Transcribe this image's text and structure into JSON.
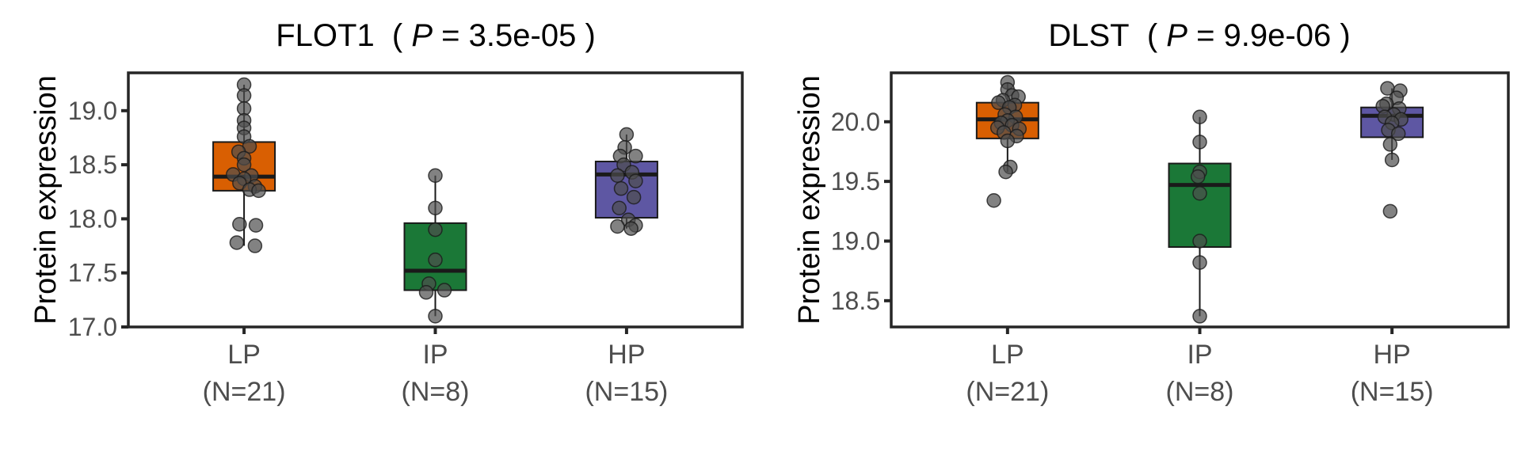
{
  "chart_data": [
    {
      "type": "box",
      "title": "FLOT1",
      "p_label": "P",
      "p_value": "3.5e-05",
      "ylabel": "Protein expression",
      "ylim": [
        17.0,
        19.35
      ],
      "yticks": [
        "17.0",
        "17.5",
        "18.0",
        "18.5",
        "19.0"
      ],
      "categories": [
        {
          "label": "LP",
          "n_label": "(N=21)",
          "color": "#D95F02"
        },
        {
          "label": "IP",
          "n_label": "(N=8)",
          "color": "#1B7837"
        },
        {
          "label": "HP",
          "n_label": "(N=15)",
          "color": "#5E57A3"
        }
      ],
      "boxes": [
        {
          "q1": 18.26,
          "median": 18.39,
          "q3": 18.71,
          "whisker_low": 17.75,
          "whisker_high": 19.24
        },
        {
          "q1": 17.34,
          "median": 17.52,
          "q3": 17.96,
          "whisker_low": 17.1,
          "whisker_high": 18.4
        },
        {
          "q1": 18.01,
          "median": 18.41,
          "q3": 18.53,
          "whisker_low": 17.91,
          "whisker_high": 18.78
        }
      ],
      "points": [
        [
          {
            "x": 0.0,
            "y": 19.24
          },
          {
            "x": 0.0,
            "y": 19.14
          },
          {
            "x": 0.0,
            "y": 19.02
          },
          {
            "x": 0.0,
            "y": 18.91
          },
          {
            "x": 0.0,
            "y": 18.84
          },
          {
            "x": 0.0,
            "y": 18.76
          },
          {
            "x": 0.06,
            "y": 18.67
          },
          {
            "x": -0.06,
            "y": 18.62
          },
          {
            "x": 0.0,
            "y": 18.56
          },
          {
            "x": 0.0,
            "y": 18.5
          },
          {
            "x": -0.12,
            "y": 18.41
          },
          {
            "x": 0.08,
            "y": 18.4
          },
          {
            "x": 0.0,
            "y": 18.37
          },
          {
            "x": -0.05,
            "y": 18.33
          },
          {
            "x": 0.12,
            "y": 18.3
          },
          {
            "x": 0.06,
            "y": 18.27
          },
          {
            "x": 0.16,
            "y": 18.26
          },
          {
            "x": -0.05,
            "y": 17.95
          },
          {
            "x": 0.13,
            "y": 17.94
          },
          {
            "x": -0.08,
            "y": 17.78
          },
          {
            "x": 0.12,
            "y": 17.75
          }
        ],
        [
          {
            "x": 0.0,
            "y": 18.4
          },
          {
            "x": 0.0,
            "y": 18.1
          },
          {
            "x": 0.0,
            "y": 17.9
          },
          {
            "x": 0.0,
            "y": 17.62
          },
          {
            "x": -0.07,
            "y": 17.4
          },
          {
            "x": 0.1,
            "y": 17.34
          },
          {
            "x": -0.1,
            "y": 17.32
          },
          {
            "x": 0.0,
            "y": 17.1
          }
        ],
        [
          {
            "x": 0.0,
            "y": 18.78
          },
          {
            "x": -0.02,
            "y": 18.66
          },
          {
            "x": -0.07,
            "y": 18.58
          },
          {
            "x": 0.1,
            "y": 18.58
          },
          {
            "x": -0.03,
            "y": 18.5
          },
          {
            "x": 0.06,
            "y": 18.43
          },
          {
            "x": -0.1,
            "y": 18.4
          },
          {
            "x": 0.1,
            "y": 18.35
          },
          {
            "x": -0.06,
            "y": 18.28
          },
          {
            "x": 0.08,
            "y": 18.2
          },
          {
            "x": -0.08,
            "y": 18.1
          },
          {
            "x": 0.02,
            "y": 17.99
          },
          {
            "x": -0.1,
            "y": 17.93
          },
          {
            "x": 0.1,
            "y": 17.94
          },
          {
            "x": 0.05,
            "y": 17.91
          }
        ]
      ]
    },
    {
      "type": "box",
      "title": "DLST",
      "p_label": "P",
      "p_value": "9.9e-06",
      "ylabel": "Protein expression",
      "ylim": [
        18.28,
        20.41
      ],
      "yticks": [
        "18.5",
        "19.0",
        "19.5",
        "20.0"
      ],
      "categories": [
        {
          "label": "LP",
          "n_label": "(N=21)",
          "color": "#D95F02"
        },
        {
          "label": "IP",
          "n_label": "(N=8)",
          "color": "#1B7837"
        },
        {
          "label": "HP",
          "n_label": "(N=15)",
          "color": "#5E57A3"
        }
      ],
      "boxes": [
        {
          "q1": 19.86,
          "median": 20.02,
          "q3": 20.16,
          "whisker_low": 19.58,
          "whisker_high": 20.33
        },
        {
          "q1": 18.95,
          "median": 19.47,
          "q3": 19.65,
          "whisker_low": 18.37,
          "whisker_high": 20.04
        },
        {
          "q1": 19.87,
          "median": 20.05,
          "q3": 20.12,
          "whisker_low": 19.68,
          "whisker_high": 20.28
        }
      ],
      "points": [
        [
          {
            "x": 0.0,
            "y": 20.33
          },
          {
            "x": 0.0,
            "y": 20.27
          },
          {
            "x": 0.05,
            "y": 20.22
          },
          {
            "x": 0.12,
            "y": 20.21
          },
          {
            "x": -0.05,
            "y": 20.18
          },
          {
            "x": -0.1,
            "y": 20.16
          },
          {
            "x": 0.08,
            "y": 20.14
          },
          {
            "x": 0.02,
            "y": 20.12
          },
          {
            "x": -0.03,
            "y": 20.06
          },
          {
            "x": 0.09,
            "y": 20.04
          },
          {
            "x": 0.0,
            "y": 20.01
          },
          {
            "x": -0.07,
            "y": 19.99
          },
          {
            "x": 0.05,
            "y": 19.97
          },
          {
            "x": -0.11,
            "y": 19.95
          },
          {
            "x": 0.13,
            "y": 19.94
          },
          {
            "x": -0.04,
            "y": 19.91
          },
          {
            "x": 0.1,
            "y": 19.88
          },
          {
            "x": 0.0,
            "y": 19.84
          },
          {
            "x": 0.03,
            "y": 19.62
          },
          {
            "x": -0.02,
            "y": 19.58
          },
          {
            "x": -0.15,
            "y": 19.34
          }
        ],
        [
          {
            "x": 0.0,
            "y": 20.04
          },
          {
            "x": 0.0,
            "y": 19.83
          },
          {
            "x": 0.0,
            "y": 19.58
          },
          {
            "x": -0.02,
            "y": 19.54
          },
          {
            "x": 0.0,
            "y": 19.4
          },
          {
            "x": 0.0,
            "y": 19.0
          },
          {
            "x": 0.0,
            "y": 18.82
          },
          {
            "x": 0.0,
            "y": 18.37
          }
        ],
        [
          {
            "x": -0.05,
            "y": 20.28
          },
          {
            "x": 0.09,
            "y": 20.26
          },
          {
            "x": 0.05,
            "y": 20.2
          },
          {
            "x": -0.06,
            "y": 20.15
          },
          {
            "x": -0.1,
            "y": 20.13
          },
          {
            "x": 0.08,
            "y": 20.11
          },
          {
            "x": 0.02,
            "y": 20.06
          },
          {
            "x": -0.08,
            "y": 20.04
          },
          {
            "x": 0.1,
            "y": 20.02
          },
          {
            "x": 0.0,
            "y": 19.99
          },
          {
            "x": -0.04,
            "y": 19.93
          },
          {
            "x": 0.07,
            "y": 19.9
          },
          {
            "x": -0.02,
            "y": 19.81
          },
          {
            "x": 0.0,
            "y": 19.68
          },
          {
            "x": -0.02,
            "y": 19.25
          }
        ]
      ]
    }
  ]
}
